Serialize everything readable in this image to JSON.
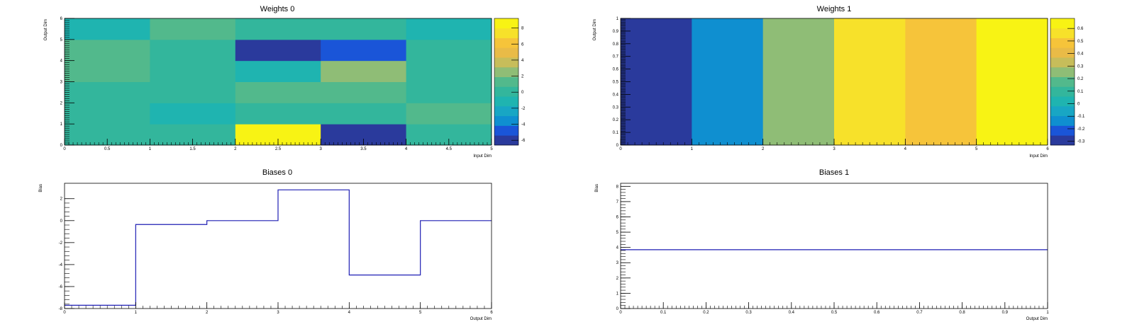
{
  "chart_data": [
    {
      "type": "heatmap",
      "title": "Weights 0",
      "xlabel": "Input Dim",
      "ylabel": "Output Dim",
      "xlim": [
        0,
        5
      ],
      "ylim": [
        0,
        6
      ],
      "x_ticks": [
        "0",
        "0.5",
        "1",
        "1.5",
        "2",
        "2.5",
        "3",
        "3.5",
        "4",
        "4.5",
        "5"
      ],
      "y_ticks": [
        "0",
        "1",
        "2",
        "3",
        "4",
        "5",
        "6"
      ],
      "color_range": [
        -6.6,
        9.2
      ],
      "colorbar_ticks": [
        "-6",
        "-4",
        "-2",
        "0",
        "2",
        "4",
        "6",
        "8"
      ],
      "values": [
        [
          0.5,
          0.5,
          9.2,
          -5.7,
          0.0
        ],
        [
          -0.3,
          -1.3,
          0.0,
          0.0,
          1.0
        ],
        [
          -0.3,
          -0.3,
          1.2,
          1.2,
          0.0
        ],
        [
          1.5,
          -0.3,
          -1.5,
          2.6,
          0.0
        ],
        [
          1.5,
          -0.3,
          -6.6,
          -5.0,
          0.6
        ],
        [
          -0.6,
          0.8,
          -0.3,
          0.6,
          -0.8
        ]
      ]
    },
    {
      "type": "heatmap",
      "title": "Weights 1",
      "xlabel": "Input Dim",
      "ylabel": "Output Dim",
      "xlim": [
        0,
        6
      ],
      "ylim": [
        0,
        1
      ],
      "x_ticks": [
        "0",
        "1",
        "2",
        "3",
        "4",
        "5",
        "6"
      ],
      "y_ticks": [
        "0",
        "0.1",
        "0.2",
        "0.3",
        "0.4",
        "0.5",
        "0.6",
        "0.7",
        "0.8",
        "0.9",
        "1"
      ],
      "color_range": [
        -0.33,
        0.68
      ],
      "colorbar_ticks": [
        "-0.3",
        "-0.2",
        "-0.1",
        "0",
        "0.1",
        "0.2",
        "0.3",
        "0.4",
        "0.5",
        "0.6"
      ],
      "values": [
        [
          -0.31,
          -0.1,
          0.28,
          0.53,
          0.47,
          0.68
        ]
      ]
    },
    {
      "type": "line",
      "style": "step",
      "title": "Biases 0",
      "xlabel": "Output Dim",
      "ylabel": "Bias",
      "xlim": [
        0,
        6
      ],
      "ylim": [
        -8,
        3.4
      ],
      "x_ticks": [
        "0",
        "1",
        "2",
        "3",
        "4",
        "5",
        "6"
      ],
      "y_ticks": [
        -8,
        -6,
        -4,
        -2,
        0,
        2
      ],
      "bin_edges": [
        0,
        1,
        2,
        3,
        4,
        5,
        6
      ],
      "values": [
        -7.7,
        -0.35,
        0.0,
        2.8,
        -4.95,
        0.0
      ]
    },
    {
      "type": "line",
      "style": "step",
      "title": "Biases 1",
      "xlabel": "Output Dim",
      "ylabel": "Bias",
      "xlim": [
        0,
        1
      ],
      "ylim": [
        0,
        8.2
      ],
      "x_ticks": [
        "0",
        "0.1",
        "0.2",
        "0.3",
        "0.4",
        "0.5",
        "0.6",
        "0.7",
        "0.8",
        "0.9",
        "1"
      ],
      "y_ticks": [
        0,
        1,
        2,
        3,
        4,
        5,
        6,
        7,
        8
      ],
      "bin_edges": [
        0,
        1
      ],
      "values": [
        3.85
      ]
    }
  ],
  "colors": {
    "line": "#1f1fb4",
    "palette": [
      "#2a3a9c",
      "#1a55d8",
      "#0f8fd0",
      "#18a6c4",
      "#1fb4b0",
      "#33b69c",
      "#52b98c",
      "#8fbd76",
      "#c7bd5a",
      "#e9bb47",
      "#f6c43a",
      "#f7e12a",
      "#f8f314"
    ]
  }
}
